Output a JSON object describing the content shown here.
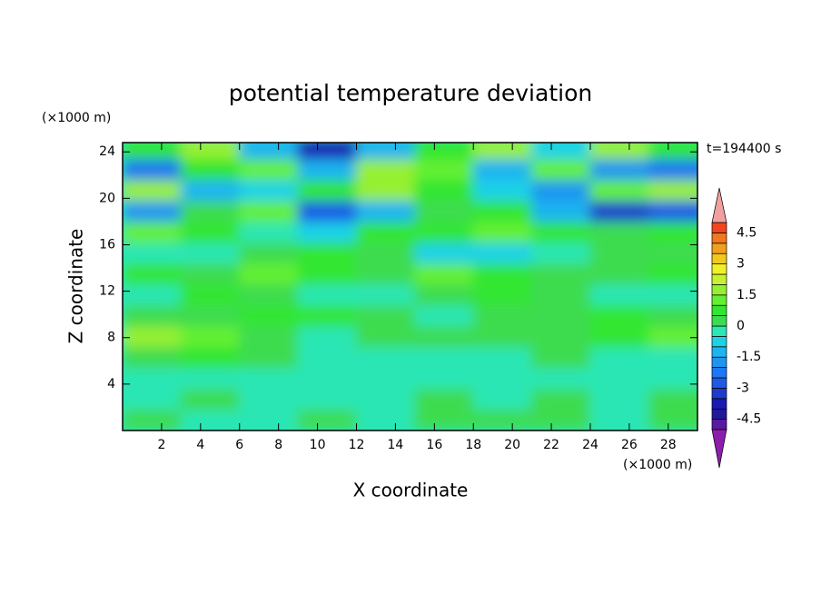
{
  "chart_data": {
    "type": "contour",
    "title": "potential temperature deviation",
    "x_label": "X coordinate",
    "y_label": "Z coordinate",
    "x_unit": "(×1000 m)",
    "y_unit": "(×1000 m)",
    "time_label": "t=194400 s",
    "xlim": [
      0,
      29.5
    ],
    "ylim": [
      0,
      24.8
    ],
    "xticks": [
      2,
      4,
      6,
      8,
      10,
      12,
      14,
      16,
      18,
      20,
      22,
      24,
      26,
      28
    ],
    "yticks": [
      4,
      8,
      12,
      16,
      20,
      24
    ],
    "x": [
      1.5,
      4.5,
      7.5,
      10.5,
      13.5,
      16.5,
      19.5,
      22.5,
      25.5,
      28.5
    ],
    "y": [
      0.9,
      2.7,
      4.5,
      6.3,
      8.1,
      9.9,
      11.7,
      13.5,
      15.3,
      17.1,
      18.9,
      20.7,
      22.5,
      24.3
    ],
    "z": [
      [
        0.2,
        -0.3,
        -0.3,
        0.3,
        -0.2,
        0.3,
        0.3,
        0.2,
        -0.2,
        0.3
      ],
      [
        -0.2,
        0.2,
        -0.3,
        -0.3,
        -0.3,
        0.3,
        -0.3,
        0.3,
        -0.3,
        0.2
      ],
      [
        -0.3,
        -0.3,
        -0.3,
        -0.3,
        -0.3,
        -0.3,
        -0.3,
        -0.3,
        -0.3,
        -0.3
      ],
      [
        0.3,
        0.8,
        0.3,
        -0.3,
        -0.3,
        -0.3,
        -0.3,
        0.3,
        -0.3,
        -0.3
      ],
      [
        1.8,
        1.2,
        0.3,
        -0.3,
        0.3,
        0.3,
        0.3,
        0.3,
        0.8,
        1.2
      ],
      [
        0.3,
        0.3,
        0.8,
        0.8,
        0.3,
        -0.3,
        0.3,
        0.3,
        0.8,
        0.3
      ],
      [
        -0.3,
        0.8,
        0.3,
        -0.3,
        -0.3,
        0.3,
        0.8,
        0.3,
        -0.3,
        -0.3
      ],
      [
        0.8,
        0.3,
        1.2,
        0.8,
        0.3,
        1.2,
        0.8,
        0.3,
        0.3,
        0.8
      ],
      [
        -0.3,
        -0.3,
        0.3,
        0.8,
        0.3,
        -0.8,
        -0.8,
        -0.3,
        0.3,
        0.3
      ],
      [
        1.2,
        0.8,
        -0.3,
        -0.8,
        0.8,
        0.8,
        1.2,
        0.8,
        0.3,
        0.8
      ],
      [
        -1.8,
        0.3,
        1.2,
        -2.8,
        -1.3,
        0.3,
        0.8,
        -1.3,
        -3.2,
        -2.8
      ],
      [
        1.8,
        -1.3,
        -0.8,
        0.8,
        1.8,
        0.8,
        -0.8,
        -1.8,
        1.2,
        1.8
      ],
      [
        -2.3,
        0.8,
        1.2,
        -1.3,
        1.8,
        1.2,
        -1.3,
        1.2,
        -1.8,
        -2.3
      ],
      [
        0.8,
        1.8,
        -1.3,
        -3.8,
        -1.3,
        0.8,
        1.8,
        -0.8,
        1.8,
        0.8
      ]
    ],
    "levels": [
      -5,
      -4.5,
      -4,
      -3.5,
      -3,
      -2.5,
      -2,
      -1.5,
      -1,
      -0.5,
      0,
      0.5,
      1,
      1.5,
      2,
      2.5,
      3,
      3.5,
      4,
      4.5,
      5
    ],
    "colors": [
      "#5a1aa0",
      "#22189a",
      "#1a1ab4",
      "#1e3ccc",
      "#1e5ae6",
      "#1e78f0",
      "#1e96f0",
      "#1eb4f0",
      "#1ed2e6",
      "#2ce6b4",
      "#3cdc50",
      "#32e632",
      "#64f032",
      "#96f032",
      "#c8f032",
      "#f0f028",
      "#f0c81e",
      "#f0a01e",
      "#f0781e",
      "#f0461e"
    ],
    "extend_colors": [
      "#8c1eaa",
      "#f0a0a0"
    ],
    "level_ticks": [
      -4.5,
      -3,
      -1.5,
      0,
      1.5,
      3,
      4.5
    ]
  }
}
